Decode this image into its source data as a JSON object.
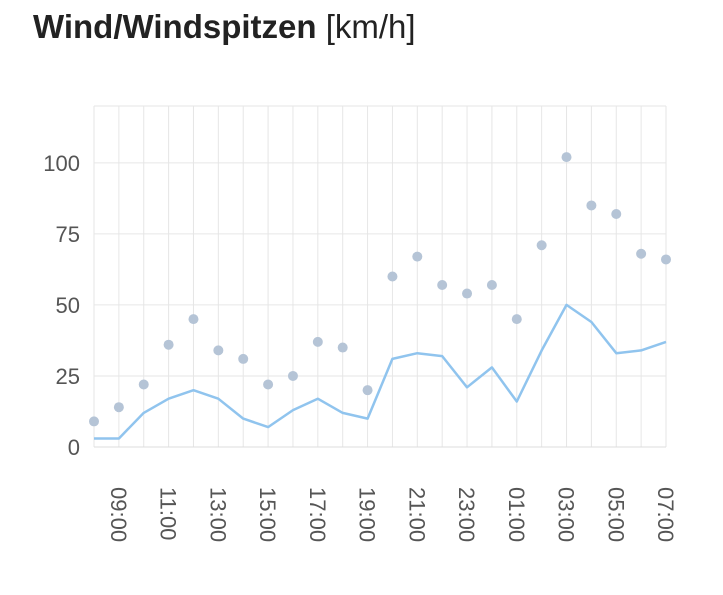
{
  "title": "Wind/Windspitzen",
  "title_unit": "[km/h]",
  "chart_data": {
    "type": "line",
    "x": [
      "08:00",
      "09:00",
      "10:00",
      "11:00",
      "12:00",
      "13:00",
      "14:00",
      "15:00",
      "16:00",
      "17:00",
      "18:00",
      "19:00",
      "20:00",
      "21:00",
      "22:00",
      "23:00",
      "00:00",
      "01:00",
      "02:00",
      "03:00",
      "04:00",
      "05:00",
      "06:00",
      "07:00"
    ],
    "x_tick_labels": [
      "09:00",
      "11:00",
      "13:00",
      "15:00",
      "17:00",
      "19:00",
      "21:00",
      "23:00",
      "01:00",
      "03:00",
      "05:00",
      "07:00"
    ],
    "y_ticks": [
      0,
      25,
      50,
      75,
      100
    ],
    "ylim": [
      0,
      120
    ],
    "grid": true,
    "series": [
      {
        "type": "line",
        "color": "#90c4ee",
        "values": [
          3,
          3,
          12,
          17,
          20,
          17,
          10,
          7,
          13,
          17,
          12,
          10,
          31,
          33,
          32,
          21,
          28,
          16,
          34,
          50,
          44,
          33,
          34,
          37
        ]
      },
      {
        "type": "scatter",
        "color": "#b5c4d6",
        "values": [
          9,
          14,
          22,
          36,
          45,
          34,
          31,
          22,
          25,
          37,
          35,
          20,
          60,
          67,
          57,
          54,
          57,
          45,
          71,
          102,
          85,
          82,
          68,
          66
        ]
      }
    ]
  }
}
